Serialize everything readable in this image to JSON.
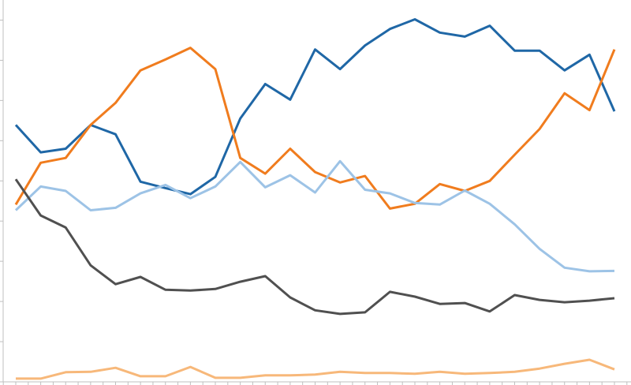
{
  "chart_data": {
    "type": "line",
    "categories": [
      null,
      null,
      null,
      null,
      null,
      null,
      null,
      null,
      null,
      null,
      null,
      null,
      null,
      null,
      null,
      null,
      null,
      null,
      null,
      null,
      null,
      null,
      null,
      null,
      null
    ],
    "ylim": [
      0,
      9.5
    ],
    "yticks": [
      0,
      1,
      2,
      3,
      4,
      5,
      6,
      7,
      8,
      9
    ],
    "series": [
      {
        "color": "#1f67a6",
        "values": [
          6.39,
          5.71,
          5.8,
          6.39,
          6.16,
          4.98,
          4.82,
          4.67,
          5.1,
          6.55,
          7.41,
          7.02,
          8.27,
          7.78,
          8.37,
          8.78,
          9.02,
          8.69,
          8.59,
          8.86,
          8.24,
          8.24,
          7.75,
          8.14,
          6.73
        ]
      },
      {
        "color": "#f07c1e",
        "values": [
          4.41,
          5.45,
          5.57,
          6.39,
          6.94,
          7.75,
          8.02,
          8.31,
          7.78,
          5.57,
          5.18,
          5.8,
          5.22,
          4.96,
          5.12,
          4.31,
          4.43,
          4.92,
          4.75,
          5.0,
          5.65,
          6.29,
          7.18,
          6.76,
          8.27
        ]
      },
      {
        "color": "#9dc3e6",
        "values": [
          4.27,
          4.86,
          4.75,
          4.27,
          4.33,
          4.69,
          4.9,
          4.57,
          4.86,
          5.47,
          4.84,
          5.14,
          4.71,
          5.49,
          4.78,
          4.69,
          4.45,
          4.41,
          4.76,
          4.43,
          3.92,
          3.31,
          2.84,
          2.75,
          2.76
        ]
      },
      {
        "color": "#505050",
        "values": [
          5.04,
          4.14,
          3.84,
          2.9,
          2.43,
          2.61,
          2.29,
          2.27,
          2.31,
          2.49,
          2.63,
          2.1,
          1.78,
          1.69,
          1.73,
          2.24,
          2.12,
          1.94,
          1.96,
          1.75,
          2.16,
          2.04,
          1.98,
          2.02,
          2.08
        ]
      },
      {
        "color": "#f7b87a",
        "values": [
          0.08,
          0.08,
          0.24,
          0.25,
          0.35,
          0.14,
          0.14,
          0.37,
          0.1,
          0.1,
          0.16,
          0.16,
          0.18,
          0.25,
          0.22,
          0.22,
          0.2,
          0.25,
          0.2,
          0.22,
          0.25,
          0.33,
          0.45,
          0.55,
          0.31
        ]
      }
    ]
  }
}
